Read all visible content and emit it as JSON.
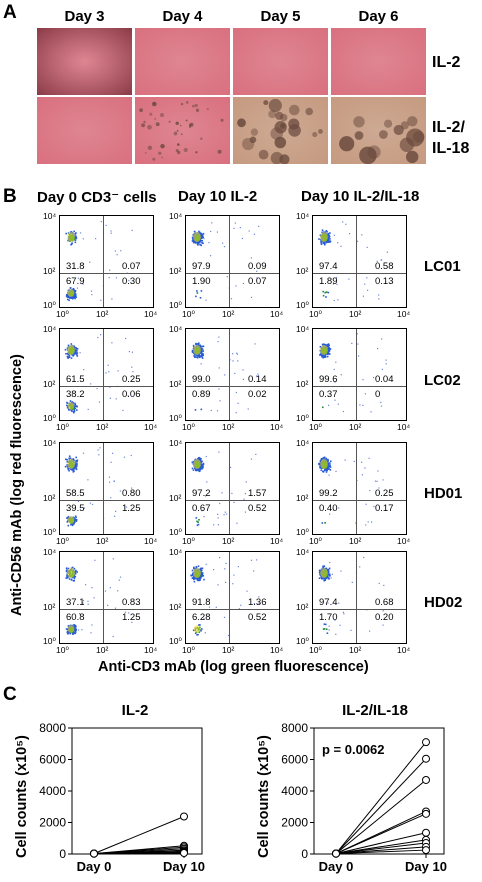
{
  "panel_a": {
    "letter": "A",
    "days": [
      "Day 3",
      "Day 4",
      "Day 5",
      "Day 6"
    ],
    "conditions": [
      {
        "line1": "IL-2",
        "line2": ""
      },
      {
        "line1": "IL-2/",
        "line2": "IL-18"
      }
    ]
  },
  "panel_b": {
    "letter": "B",
    "columns": [
      "Day 0 CD3⁻ cells",
      "Day 10 IL-2",
      "Day 10 IL-2/IL-18"
    ],
    "rows": [
      "LC01",
      "LC02",
      "HD01",
      "HD02"
    ],
    "quadrants": [
      [
        [
          "31.8",
          "0.07",
          "67.9",
          "0.30"
        ],
        [
          "97.9",
          "0.09",
          "1.90",
          "0.07"
        ],
        [
          "97.4",
          "0.58",
          "1.89",
          "0.13"
        ]
      ],
      [
        [
          "61.5",
          "0.25",
          "38.2",
          "0.06"
        ],
        [
          "99.0",
          "0.14",
          "0.89",
          "0.02"
        ],
        [
          "99.6",
          "0.04",
          "0.37",
          "0"
        ]
      ],
      [
        [
          "58.5",
          "0.80",
          "39.5",
          "1.25"
        ],
        [
          "97.2",
          "1.57",
          "0.67",
          "0.52"
        ],
        [
          "99.2",
          "0.25",
          "0.40",
          "0.17"
        ]
      ],
      [
        [
          "37.1",
          "0.83",
          "60.8",
          "1.25"
        ],
        [
          "91.8",
          "1.36",
          "6.28",
          "0.52"
        ],
        [
          "97.4",
          "0.68",
          "1.70",
          "0.20"
        ]
      ]
    ],
    "ytick_top": "10⁴",
    "ytick_mid": "10²",
    "xtick_1": "10⁰",
    "xtick_2": "10²",
    "xtick_3": "10⁴",
    "ytick_bottom": "10⁰",
    "x_axis_title": "Anti-CD3 mAb (log green fluorescence)",
    "y_axis_title": "Anti-CD56 mAb (log red fluorescence)"
  },
  "panel_c": {
    "letter": "C",
    "y_axis_title": "Cell counts (x10⁵)",
    "charts": [
      {
        "title": "IL-2",
        "annotation": ""
      },
      {
        "title": "IL-2/IL-18",
        "annotation": "p = 0.0062"
      }
    ]
  },
  "chart_data": [
    {
      "type": "line",
      "title": "IL-2",
      "ylabel": "Cell counts (x10⁵)",
      "categories": [
        "Day 0",
        "Day 10"
      ],
      "ylim": [
        0,
        8000
      ],
      "yticks": [
        0,
        2000,
        4000,
        6000,
        8000
      ],
      "series": [
        {
          "values": [
            25,
            2380
          ]
        },
        {
          "values": [
            25,
            520
          ]
        },
        {
          "values": [
            25,
            430
          ]
        },
        {
          "values": [
            25,
            330
          ]
        },
        {
          "values": [
            25,
            240
          ]
        },
        {
          "values": [
            25,
            170
          ]
        },
        {
          "values": [
            25,
            110
          ]
        },
        {
          "values": [
            25,
            60
          ]
        }
      ]
    },
    {
      "type": "line",
      "title": "IL-2/IL-18",
      "ylabel": "Cell counts (x10⁵)",
      "categories": [
        "Day 0",
        "Day 10"
      ],
      "ylim": [
        0,
        8000
      ],
      "yticks": [
        0,
        2000,
        4000,
        6000,
        8000
      ],
      "annotation": "p = 0.0062",
      "series": [
        {
          "values": [
            25,
            7100
          ]
        },
        {
          "values": [
            25,
            6050
          ]
        },
        {
          "values": [
            25,
            4700
          ]
        },
        {
          "values": [
            25,
            2700
          ]
        },
        {
          "values": [
            25,
            2550
          ]
        },
        {
          "values": [
            25,
            1350
          ]
        },
        {
          "values": [
            25,
            900
          ]
        },
        {
          "values": [
            25,
            700
          ]
        },
        {
          "values": [
            25,
            450
          ]
        },
        {
          "values": [
            25,
            250
          ]
        }
      ]
    }
  ],
  "colors": {
    "micro_pink": "#d9707f",
    "micro_brown": "#c59a80",
    "colony": "#6a4a3e",
    "flow_core": "#1d8a3a",
    "flow_edge": "#2a5bd6",
    "flow_dot": "#6b85d8"
  }
}
